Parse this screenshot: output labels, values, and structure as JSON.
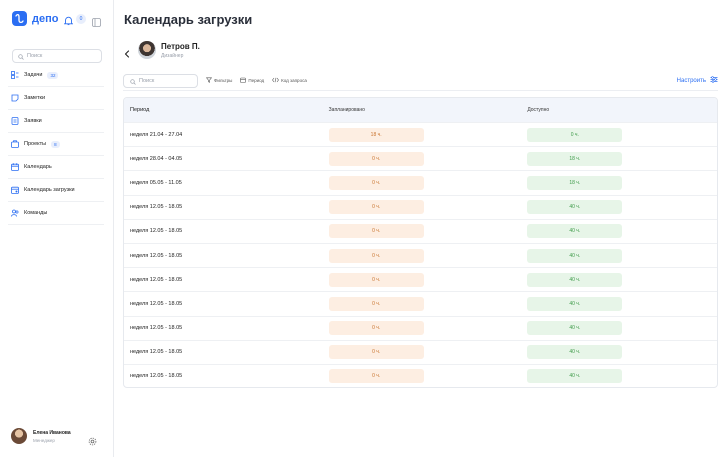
{
  "app": {
    "brand": "депо",
    "title": "Календарь загрузки",
    "notifications": "0"
  },
  "sidebar": {
    "search_placeholder": "Поиск",
    "items": [
      {
        "label": "Задачи",
        "badge": "32"
      },
      {
        "label": "Заметки"
      },
      {
        "label": "Заявки"
      },
      {
        "label": "Проекты",
        "badge": "8"
      },
      {
        "label": "Календарь"
      },
      {
        "label": "Календарь загрузки"
      },
      {
        "label": "Команды"
      }
    ],
    "user": {
      "name": "Елена Иванова",
      "role": "Менеджер"
    }
  },
  "person": {
    "name": "Петров П.",
    "role": "Дизайнер"
  },
  "toolbar": {
    "search_placeholder": "Поиск",
    "filters": "Фильтры",
    "period": "Период",
    "query_code": "Код запроса",
    "configure": "Настроить"
  },
  "table": {
    "headers": {
      "period": "Период",
      "planned": "Запланировано",
      "available": "Доступно"
    },
    "rows": [
      {
        "period": "неделя 21.04 - 27.04",
        "planned": "18 ч.",
        "available": "0 ч."
      },
      {
        "period": "неделя 28.04 - 04.05",
        "planned": "0 ч.",
        "available": "18 ч."
      },
      {
        "period": "неделя 05.05 - 11.05",
        "planned": "0 ч.",
        "available": "18 ч."
      },
      {
        "period": "неделя 12.05 - 18.05",
        "planned": "0 ч.",
        "available": "40 ч."
      },
      {
        "period": "неделя 12.05 - 18.05",
        "planned": "0 ч.",
        "available": "40 ч."
      },
      {
        "period": "неделя 12.05 - 18.05",
        "planned": "0 ч.",
        "available": "40 ч."
      },
      {
        "period": "неделя 12.05 - 18.05",
        "planned": "0 ч.",
        "available": "40 ч."
      },
      {
        "period": "неделя 12.05 - 18.05",
        "planned": "0 ч.",
        "available": "40 ч."
      },
      {
        "period": "неделя 12.05 - 18.05",
        "planned": "0 ч.",
        "available": "40 ч."
      },
      {
        "period": "неделя 12.05 - 18.05",
        "planned": "0 ч.",
        "available": "40 ч."
      },
      {
        "period": "неделя 12.05 - 18.05",
        "planned": "0 ч.",
        "available": "40 ч."
      }
    ]
  },
  "colors": {
    "accent": "#2b6ef2",
    "planned_bg": "#fdeee2",
    "planned_text": "#c9742f",
    "available_bg": "#e7f5e8",
    "available_text": "#3d9a48"
  }
}
